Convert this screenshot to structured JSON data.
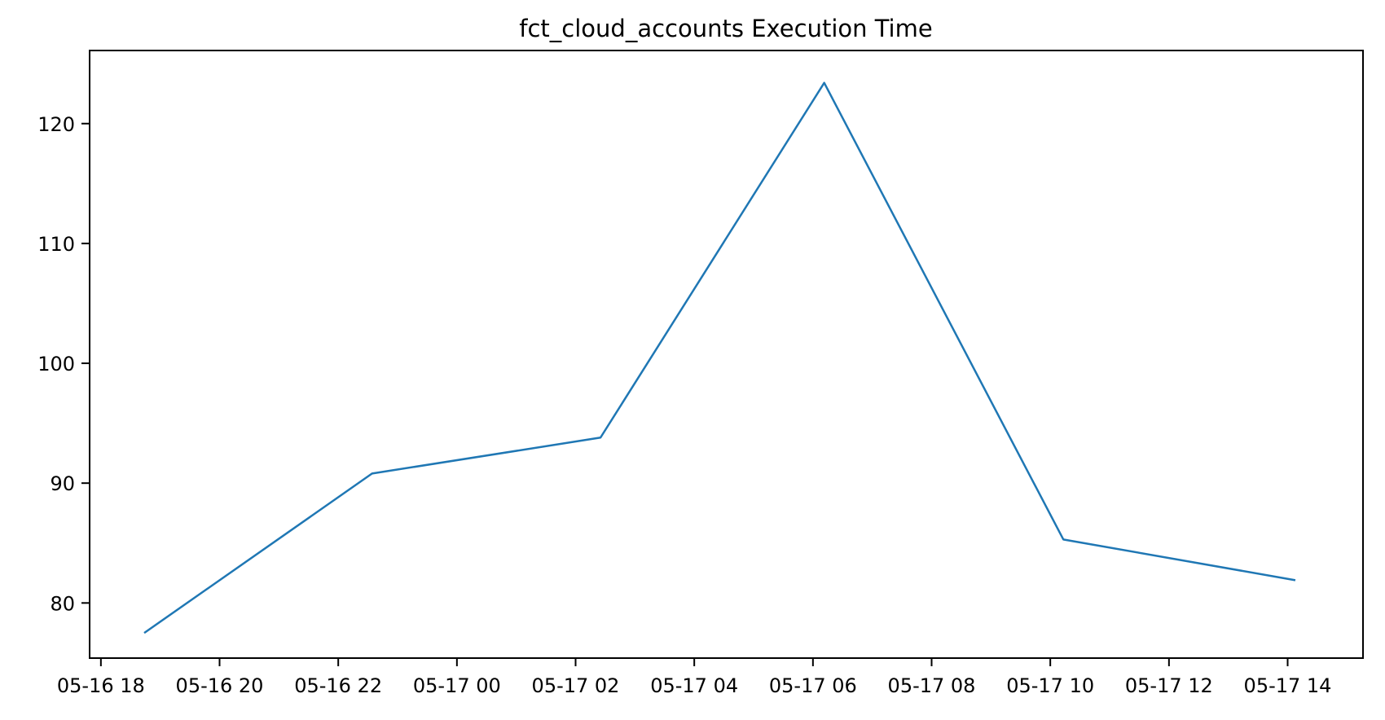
{
  "page": {
    "background_color": "#ffffff"
  },
  "chart": {
    "title": "fct_cloud_accounts Execution Time"
  },
  "chart_data": {
    "type": "line",
    "title": "fct_cloud_accounts Execution Time",
    "xlabel": "",
    "ylabel": "",
    "grid": false,
    "legend": null,
    "line_color": "#1f77b4",
    "line_width": 2.5,
    "x_unit": "hours since 05-16 00:00",
    "xlim": [
      17.81,
      39.27
    ],
    "ylim": [
      75.4,
      126.1
    ],
    "xticks": [
      {
        "hours": 18,
        "label": "05-16 18"
      },
      {
        "hours": 20,
        "label": "05-16 20"
      },
      {
        "hours": 22,
        "label": "05-16 22"
      },
      {
        "hours": 24,
        "label": "05-17 00"
      },
      {
        "hours": 26,
        "label": "05-17 02"
      },
      {
        "hours": 28,
        "label": "05-17 04"
      },
      {
        "hours": 30,
        "label": "05-17 06"
      },
      {
        "hours": 32,
        "label": "05-17 08"
      },
      {
        "hours": 34,
        "label": "05-17 10"
      },
      {
        "hours": 36,
        "label": "05-17 12"
      },
      {
        "hours": 38,
        "label": "05-17 14"
      }
    ],
    "yticks": [
      80,
      90,
      100,
      110,
      120
    ],
    "series": [
      {
        "name": "execution_time",
        "color": "#1f77b4",
        "points": [
          {
            "time": "05-16 18:45",
            "hours": 18.73,
            "value": 77.5
          },
          {
            "time": "05-16 22:35",
            "hours": 22.57,
            "value": 90.8
          },
          {
            "time": "05-17 02:25",
            "hours": 26.42,
            "value": 93.8
          },
          {
            "time": "05-17 06:10",
            "hours": 30.19,
            "value": 123.4
          },
          {
            "time": "05-17 10:15",
            "hours": 34.22,
            "value": 85.3
          },
          {
            "time": "05-17 14:05",
            "hours": 38.13,
            "value": 81.9
          }
        ]
      }
    ]
  }
}
